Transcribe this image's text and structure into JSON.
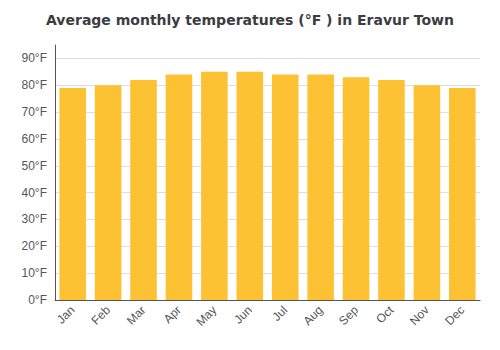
{
  "chart_data": {
    "type": "bar",
    "title": "Average monthly temperatures (°F ) in Eravur Town",
    "categories": [
      "Jan",
      "Feb",
      "Mar",
      "Apr",
      "May",
      "Jun",
      "Jul",
      "Aug",
      "Sep",
      "Oct",
      "Nov",
      "Dec"
    ],
    "values": [
      79,
      80,
      82,
      84,
      85,
      85,
      84,
      84,
      83,
      82,
      80,
      79
    ],
    "color": "#FDC233",
    "ylim": [
      0,
      95
    ],
    "yticks": [
      {
        "value": 0,
        "label": "0°F"
      },
      {
        "value": 10,
        "label": "10°F"
      },
      {
        "value": 20,
        "label": "20°F"
      },
      {
        "value": 30,
        "label": "30°F"
      },
      {
        "value": 40,
        "label": "40°F"
      },
      {
        "value": 50,
        "label": "50°F"
      },
      {
        "value": 60,
        "label": "60°F"
      },
      {
        "value": 70,
        "label": "70°F"
      },
      {
        "value": 80,
        "label": "80°F"
      },
      {
        "value": 90,
        "label": "90°F"
      }
    ],
    "grid": true
  }
}
